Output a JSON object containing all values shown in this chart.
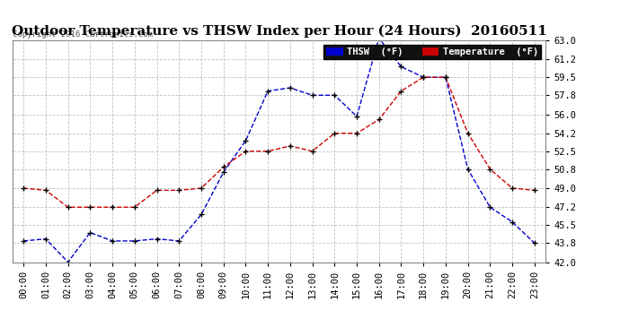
{
  "title": "Outdoor Temperature vs THSW Index per Hour (24 Hours)  20160511",
  "copyright": "Copyright 2016 Cartronics.com",
  "x_labels": [
    "00:00",
    "01:00",
    "02:00",
    "03:00",
    "04:00",
    "05:00",
    "06:00",
    "07:00",
    "08:00",
    "09:00",
    "10:00",
    "11:00",
    "12:00",
    "13:00",
    "14:00",
    "15:00",
    "16:00",
    "17:00",
    "18:00",
    "19:00",
    "20:00",
    "21:00",
    "22:00",
    "23:00"
  ],
  "thsw": [
    44.0,
    44.2,
    42.0,
    44.8,
    44.0,
    44.0,
    44.2,
    44.0,
    46.5,
    50.5,
    53.5,
    58.2,
    58.5,
    57.8,
    57.8,
    55.8,
    63.2,
    60.5,
    59.5,
    59.5,
    50.8,
    47.2,
    45.8,
    43.8
  ],
  "temperature": [
    49.0,
    48.8,
    47.2,
    47.2,
    47.2,
    47.2,
    48.8,
    48.8,
    49.0,
    51.0,
    52.5,
    52.5,
    53.0,
    52.5,
    54.2,
    54.2,
    55.5,
    58.2,
    59.5,
    59.5,
    54.2,
    50.8,
    49.0,
    48.8
  ],
  "ylim": [
    42.0,
    63.0
  ],
  "yticks": [
    42.0,
    43.8,
    45.5,
    47.2,
    49.0,
    50.8,
    52.5,
    54.2,
    56.0,
    57.8,
    59.5,
    61.2,
    63.0
  ],
  "ytick_labels": [
    "42.0",
    "43.8",
    "45.5",
    "47.2",
    "49.0",
    "50.8",
    "52.5",
    "54.2",
    "56.0",
    "57.8",
    "59.5",
    "61.2",
    "63.0"
  ],
  "thsw_color": "#0000cc",
  "temp_color": "#cc0000",
  "bg_color": "#ffffff",
  "legend_thsw_bg": "#0000cc",
  "legend_temp_bg": "#cc0000",
  "grid_color": "#c0c0c0",
  "title_fontsize": 11,
  "tick_fontsize": 7.5,
  "copyright_fontsize": 6.5
}
